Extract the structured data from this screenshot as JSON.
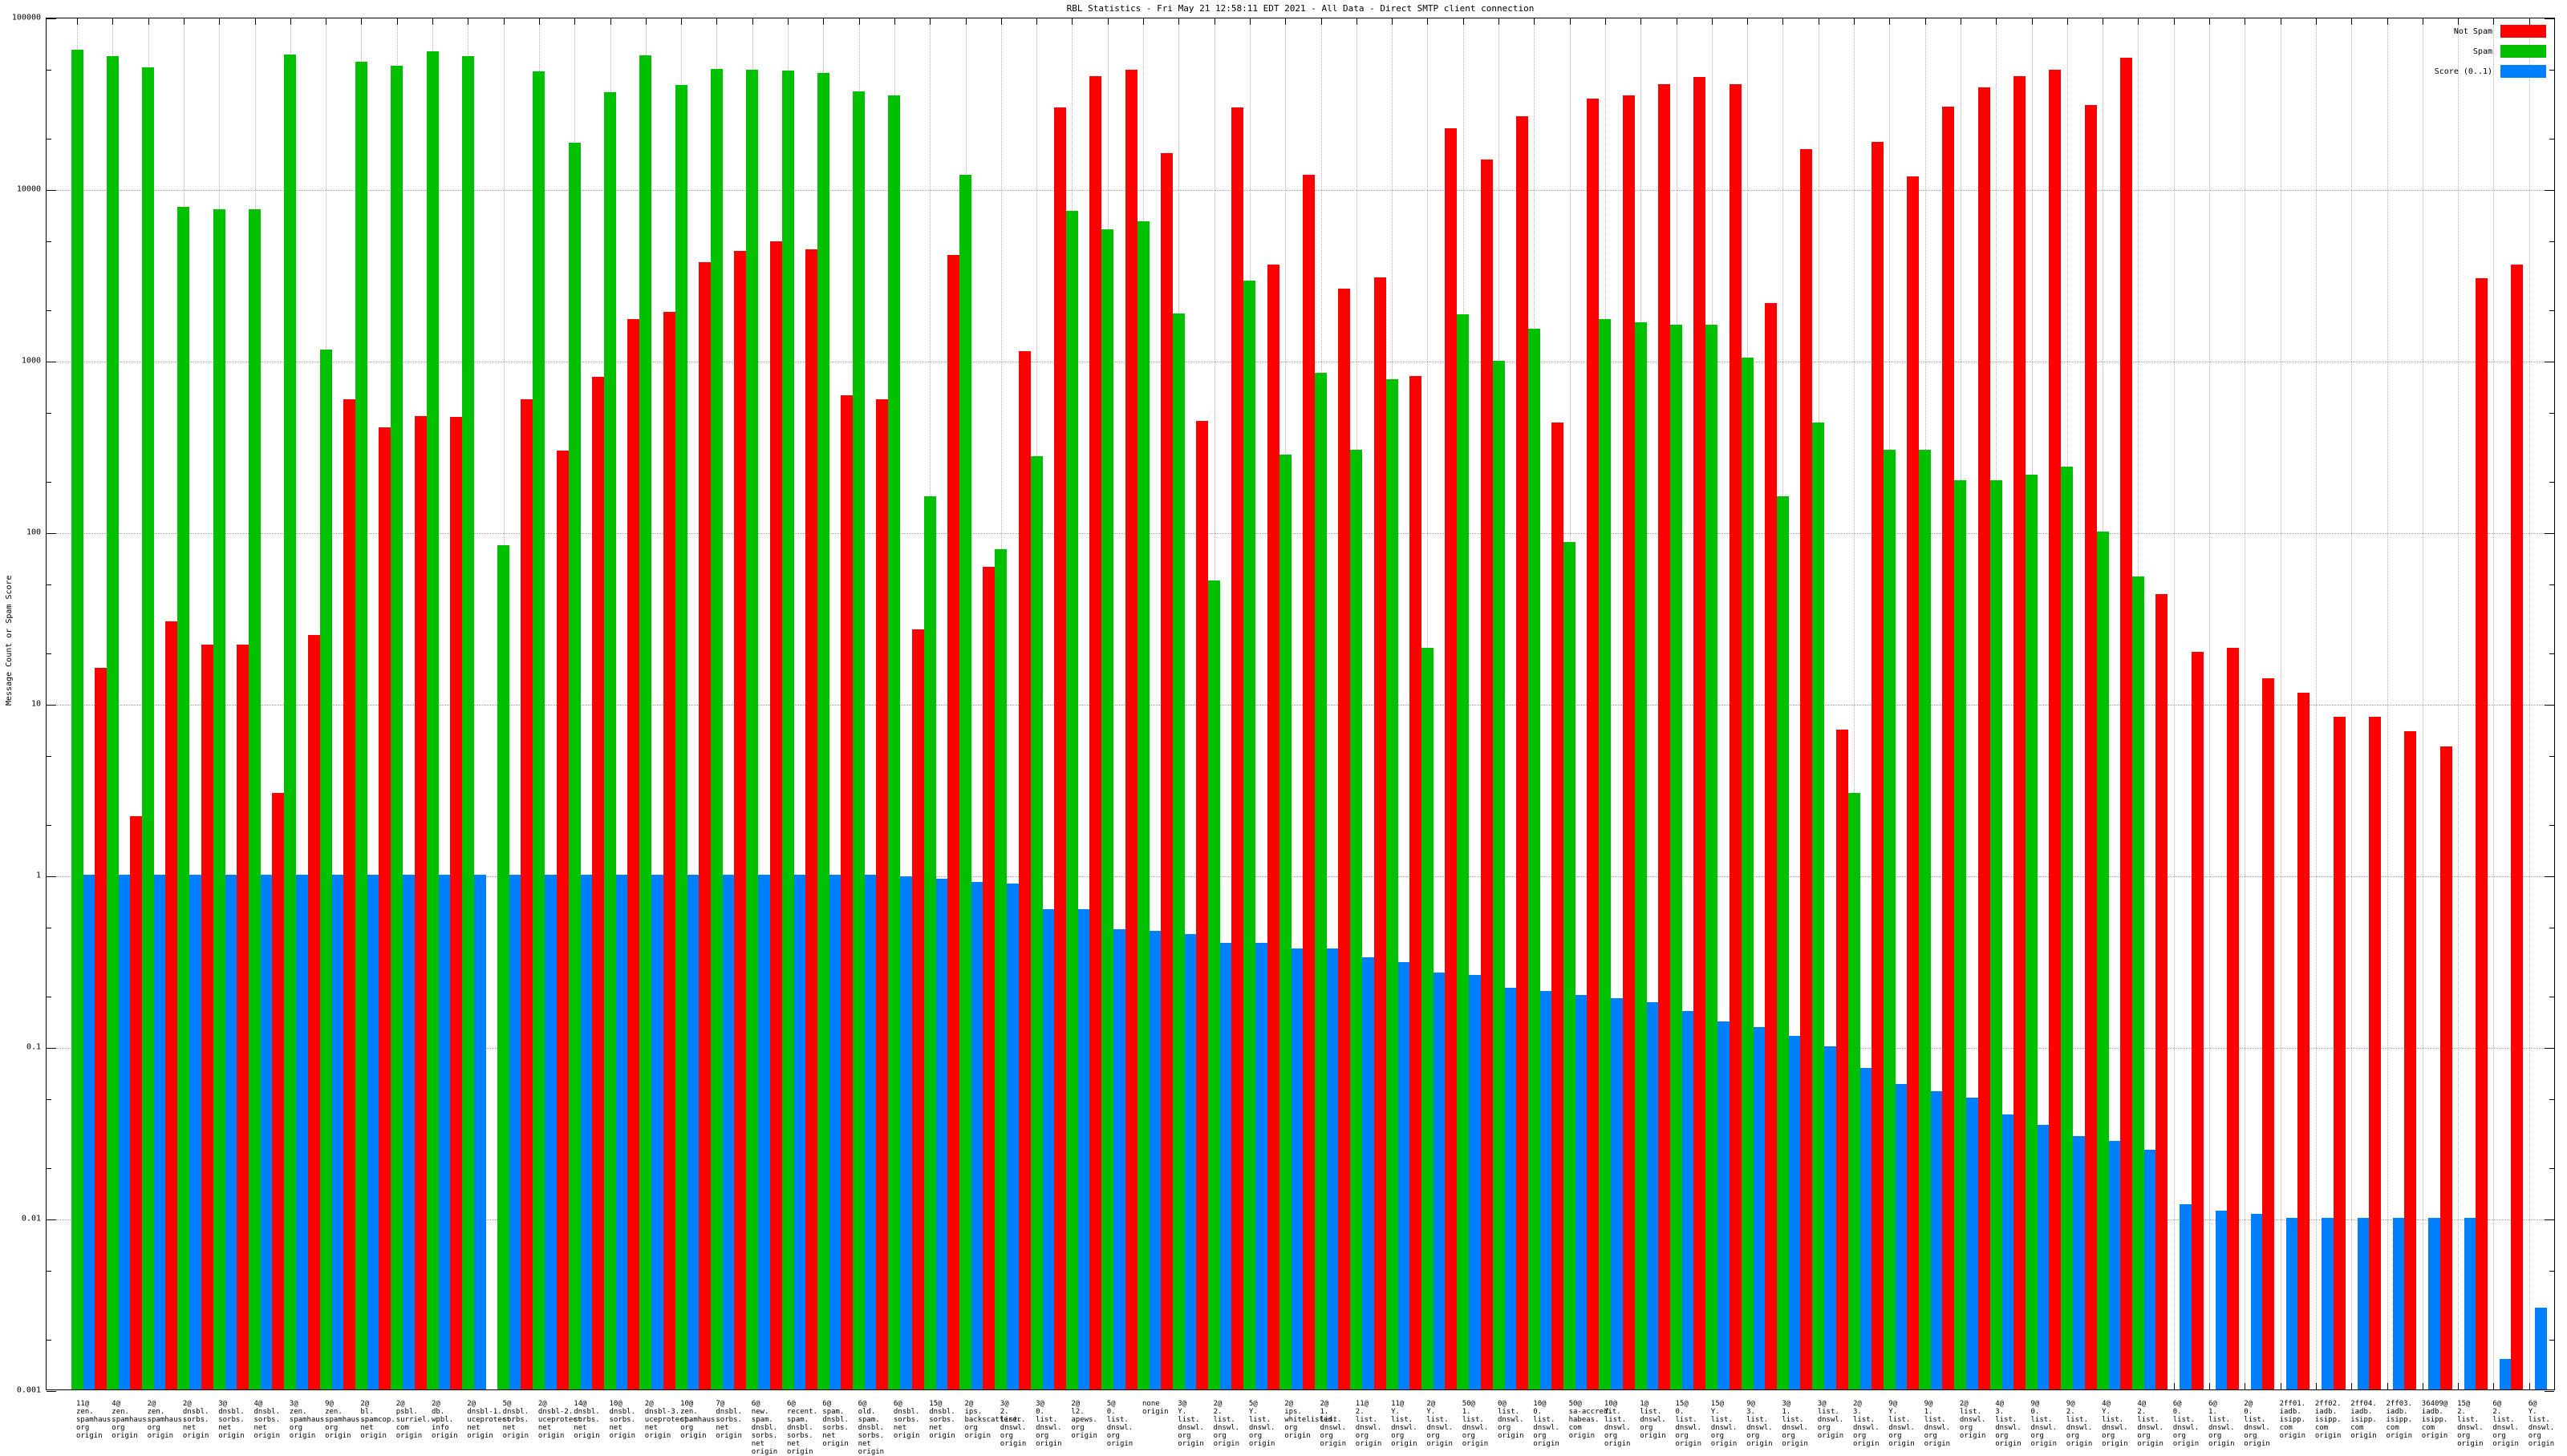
{
  "title": "RBL Statistics - Fri May 21 12:58:11 EDT 2021 - All Data - Direct SMTP client connection",
  "legend": [
    {
      "label": "Not Spam",
      "color": "#ff0000"
    },
    {
      "label": "Spam",
      "color": "#00c000"
    },
    {
      "label": "Score (0..1)",
      "color": "#0080ff"
    }
  ],
  "y_axis": {
    "label": "Message Count or Spam Score",
    "ticks": [
      "100000",
      "10000",
      "1000",
      "100",
      "10",
      "1",
      "0.1",
      "0.01",
      "0.001"
    ]
  },
  "chart_data": {
    "type": "bar",
    "title": "RBL Statistics - Fri May 21 12:58:11 EDT 2021 - All Data - Direct SMTP client connection",
    "xlabel": "",
    "ylabel": "Message Count or Spam Score",
    "yscale": "log",
    "ylim": [
      0.001,
      100000
    ],
    "grid": true,
    "legend_position": "top-right",
    "series_names": [
      "Not Spam",
      "Spam",
      "Score (0..1)"
    ],
    "colors": {
      "not_spam": "#ff0000",
      "spam": "#00c000",
      "score": "#0080ff"
    },
    "groups": [
      {
        "label": "11@zen.spamhaus.org origin",
        "not_spam": 0,
        "spam": 64000,
        "score": 1.0
      },
      {
        "label": "4@zen.spamhaus.org origin",
        "not_spam": 16,
        "spam": 59000,
        "score": 1.0
      },
      {
        "label": "2@zen.spamhaus.org origin",
        "not_spam": 2.2,
        "spam": 51000,
        "score": 1.0
      },
      {
        "label": "2@dnsbl.sorbs.net origin",
        "not_spam": 30,
        "spam": 7800,
        "score": 1.0
      },
      {
        "label": "3@dnsbl.sorbs.net origin",
        "not_spam": 22,
        "spam": 7600,
        "score": 1.0
      },
      {
        "label": "4@dnsbl.sorbs.net origin",
        "not_spam": 22,
        "spam": 7600,
        "score": 1.0
      },
      {
        "label": "3@zen.spamhaus.org origin",
        "not_spam": 3,
        "spam": 60000,
        "score": 1.0
      },
      {
        "label": "9@zen.spamhaus.org origin",
        "not_spam": 25,
        "spam": 1150,
        "score": 1.0
      },
      {
        "label": "2@bl.spamcop.net origin",
        "not_spam": 590,
        "spam": 55000,
        "score": 1.0
      },
      {
        "label": "2@psbl.surriel.com origin",
        "not_spam": 405,
        "spam": 52000,
        "score": 1.0
      },
      {
        "label": "2@db.wpbl.info origin",
        "not_spam": 470,
        "spam": 63000,
        "score": 1.0
      },
      {
        "label": "2@dnsbl-1.uceprotect.net origin",
        "not_spam": 465,
        "spam": 59000,
        "score": 1.0
      },
      {
        "label": "5@dnsbl.sorbs.net origin",
        "not_spam": 0,
        "spam": 83,
        "score": 1.0
      },
      {
        "label": "2@dnsbl-2.uceprotect.net origin",
        "not_spam": 590,
        "spam": 48000,
        "score": 1.0
      },
      {
        "label": "14@dnsbl.sorbs.net origin",
        "not_spam": 295,
        "spam": 18500,
        "score": 1.0
      },
      {
        "label": "10@dnsbl.sorbs.net origin",
        "not_spam": 800,
        "spam": 36500,
        "score": 1.0
      },
      {
        "label": "2@dnsbl-3.uceprotect.net origin",
        "not_spam": 1730,
        "spam": 59500,
        "score": 1.0
      },
      {
        "label": "10@zen.spamhaus.org origin",
        "not_spam": 1900,
        "spam": 40000,
        "score": 1.0
      },
      {
        "label": "7@dnsbl.sorbs.net origin",
        "not_spam": 3700,
        "spam": 49500,
        "score": 1.0
      },
      {
        "label": "6@new.spam.dnsbl.sorbs.net origin",
        "not_spam": 4300,
        "spam": 49000,
        "score": 1.0
      },
      {
        "label": "6@recent.spam.dnsbl.sorbs.net origin",
        "not_spam": 4900,
        "spam": 48500,
        "score": 1.0
      },
      {
        "label": "6@spam.dnsbl.sorbs.net origin",
        "not_spam": 4400,
        "spam": 47000,
        "score": 1.0
      },
      {
        "label": "6@old.spam.dnsbl.sorbs.net origin",
        "not_spam": 620,
        "spam": 36700,
        "score": 1.0
      },
      {
        "label": "6@dnsbl.sorbs.net origin",
        "not_spam": 590,
        "spam": 35000,
        "score": 0.98
      },
      {
        "label": "15@dnsbl.sorbs.net origin",
        "not_spam": 27,
        "spam": 160,
        "score": 0.95
      },
      {
        "label": "2@ips.backscatterer.org origin",
        "not_spam": 4100,
        "spam": 12000,
        "score": 0.91
      },
      {
        "label": "3@2.list.dnswl.org origin",
        "not_spam": 62,
        "spam": 79,
        "score": 0.89
      },
      {
        "label": "3@0.list.dnswl.org origin",
        "not_spam": 1120,
        "spam": 275,
        "score": 0.63
      },
      {
        "label": "2@l2.apews.org origin",
        "not_spam": 29500,
        "spam": 7400,
        "score": 0.63
      },
      {
        "label": "5@0.list.dnswl.org origin",
        "not_spam": 45000,
        "spam": 5800,
        "score": 0.48
      },
      {
        "label": "none origin",
        "not_spam": 49000,
        "spam": 6400,
        "score": 0.47
      },
      {
        "label": "3@Y.list.dnswl.org origin",
        "not_spam": 16000,
        "spam": 1870,
        "score": 0.45
      },
      {
        "label": "2@2.list.dnswl.org origin",
        "not_spam": 440,
        "spam": 52,
        "score": 0.4
      },
      {
        "label": "5@Y.list.dnswl.org origin",
        "not_spam": 29500,
        "spam": 2900,
        "score": 0.4
      },
      {
        "label": "2@ips.whitelisted.org origin",
        "not_spam": 3600,
        "spam": 280,
        "score": 0.37
      },
      {
        "label": "2@1.list.dnswl.org origin",
        "not_spam": 12000,
        "spam": 840,
        "score": 0.37
      },
      {
        "label": "11@2.list.dnswl.org origin",
        "not_spam": 2600,
        "spam": 300,
        "score": 0.33
      },
      {
        "label": "11@Y.list.dnswl.org origin",
        "not_spam": 3030,
        "spam": 770,
        "score": 0.31
      },
      {
        "label": "2@Y.list.dnswl.org origin",
        "not_spam": 810,
        "spam": 21,
        "score": 0.27
      },
      {
        "label": "50@1.list.dnswl.org origin",
        "not_spam": 22500,
        "spam": 1850,
        "score": 0.26
      },
      {
        "label": "0@list.dnswl.org origin",
        "not_spam": 14700,
        "spam": 990,
        "score": 0.22
      },
      {
        "label": "10@0.list.dnswl.org origin",
        "not_spam": 26300,
        "spam": 1520,
        "score": 0.21
      },
      {
        "label": "50@sa-accredit.habeas.com origin",
        "not_spam": 430,
        "spam": 87,
        "score": 0.2
      },
      {
        "label": "10@Y.list.dnswl.org origin",
        "not_spam": 33500,
        "spam": 1740,
        "score": 0.19
      },
      {
        "label": "1@list.dnswl.org origin",
        "not_spam": 35000,
        "spam": 1650,
        "score": 0.18
      },
      {
        "label": "15@0.list.dnswl.org origin",
        "not_spam": 40500,
        "spam": 1600,
        "score": 0.16
      },
      {
        "label": "15@Y.list.dnswl.org origin",
        "not_spam": 44800,
        "spam": 1600,
        "score": 0.14
      },
      {
        "label": "9@3.list.dnswl.org origin",
        "not_spam": 40500,
        "spam": 1030,
        "score": 0.13
      },
      {
        "label": "3@1.list.dnswl.org origin",
        "not_spam": 2150,
        "spam": 160,
        "score": 0.115
      },
      {
        "label": "3@list.dnswl.org origin",
        "not_spam": 17000,
        "spam": 430,
        "score": 0.1
      },
      {
        "label": "2@3.list.dnswl.org origin",
        "not_spam": 7,
        "spam": 3,
        "score": 0.075
      },
      {
        "label": "9@Y.list.dnswl.org origin",
        "not_spam": 18700,
        "spam": 300,
        "score": 0.06
      },
      {
        "label": "9@1.list.dnswl.org origin",
        "not_spam": 11800,
        "spam": 300,
        "score": 0.055
      },
      {
        "label": "2@list.dnswl.org origin",
        "not_spam": 30000,
        "spam": 200,
        "score": 0.05
      },
      {
        "label": "4@3.list.dnswl.org origin",
        "not_spam": 39000,
        "spam": 200,
        "score": 0.04
      },
      {
        "label": "9@0.list.dnswl.org origin",
        "not_spam": 45000,
        "spam": 215,
        "score": 0.035
      },
      {
        "label": "9@2.list.dnswl.org origin",
        "not_spam": 49000,
        "spam": 240,
        "score": 0.03
      },
      {
        "label": "4@Y.list.dnswl.org origin",
        "not_spam": 30500,
        "spam": 100,
        "score": 0.028
      },
      {
        "label": "4@2.list.dnswl.org origin",
        "not_spam": 58000,
        "spam": 55,
        "score": 0.025
      },
      {
        "label": "6@0.list.dnswl.org origin",
        "not_spam": 43,
        "spam": 0,
        "score": 0.012
      },
      {
        "label": "6@1.list.dnswl.org origin",
        "not_spam": 20,
        "spam": 0,
        "score": 0.011
      },
      {
        "label": "2@0.list.dnswl.org origin",
        "not_spam": 21,
        "spam": 0,
        "score": 0.0105
      },
      {
        "label": "2ff01.iadb.isipp.com origin",
        "not_spam": 14,
        "spam": 0,
        "score": 0.01
      },
      {
        "label": "2ff02.iadb.isipp.com origin",
        "not_spam": 11.5,
        "spam": 0,
        "score": 0.01
      },
      {
        "label": "2ff04.iadb.isipp.com origin",
        "not_spam": 8.3,
        "spam": 0,
        "score": 0.01
      },
      {
        "label": "2ff03.iadb.isipp.com origin",
        "not_spam": 8.3,
        "spam": 0,
        "score": 0.01
      },
      {
        "label": "36409@iadb.isipp.com origin",
        "not_spam": 6.9,
        "spam": 0,
        "score": 0.01
      },
      {
        "label": "15@2.list.dnswl.org origin",
        "not_spam": 5.6,
        "spam": 0,
        "score": 0.01
      },
      {
        "label": "6@2.list.dnswl.org origin",
        "not_spam": 3000,
        "spam": 0,
        "score": 0.0015
      },
      {
        "label": "6@Y.list.dnswl.org origin",
        "not_spam": 3600,
        "spam": 0,
        "score": 0.003
      }
    ]
  }
}
